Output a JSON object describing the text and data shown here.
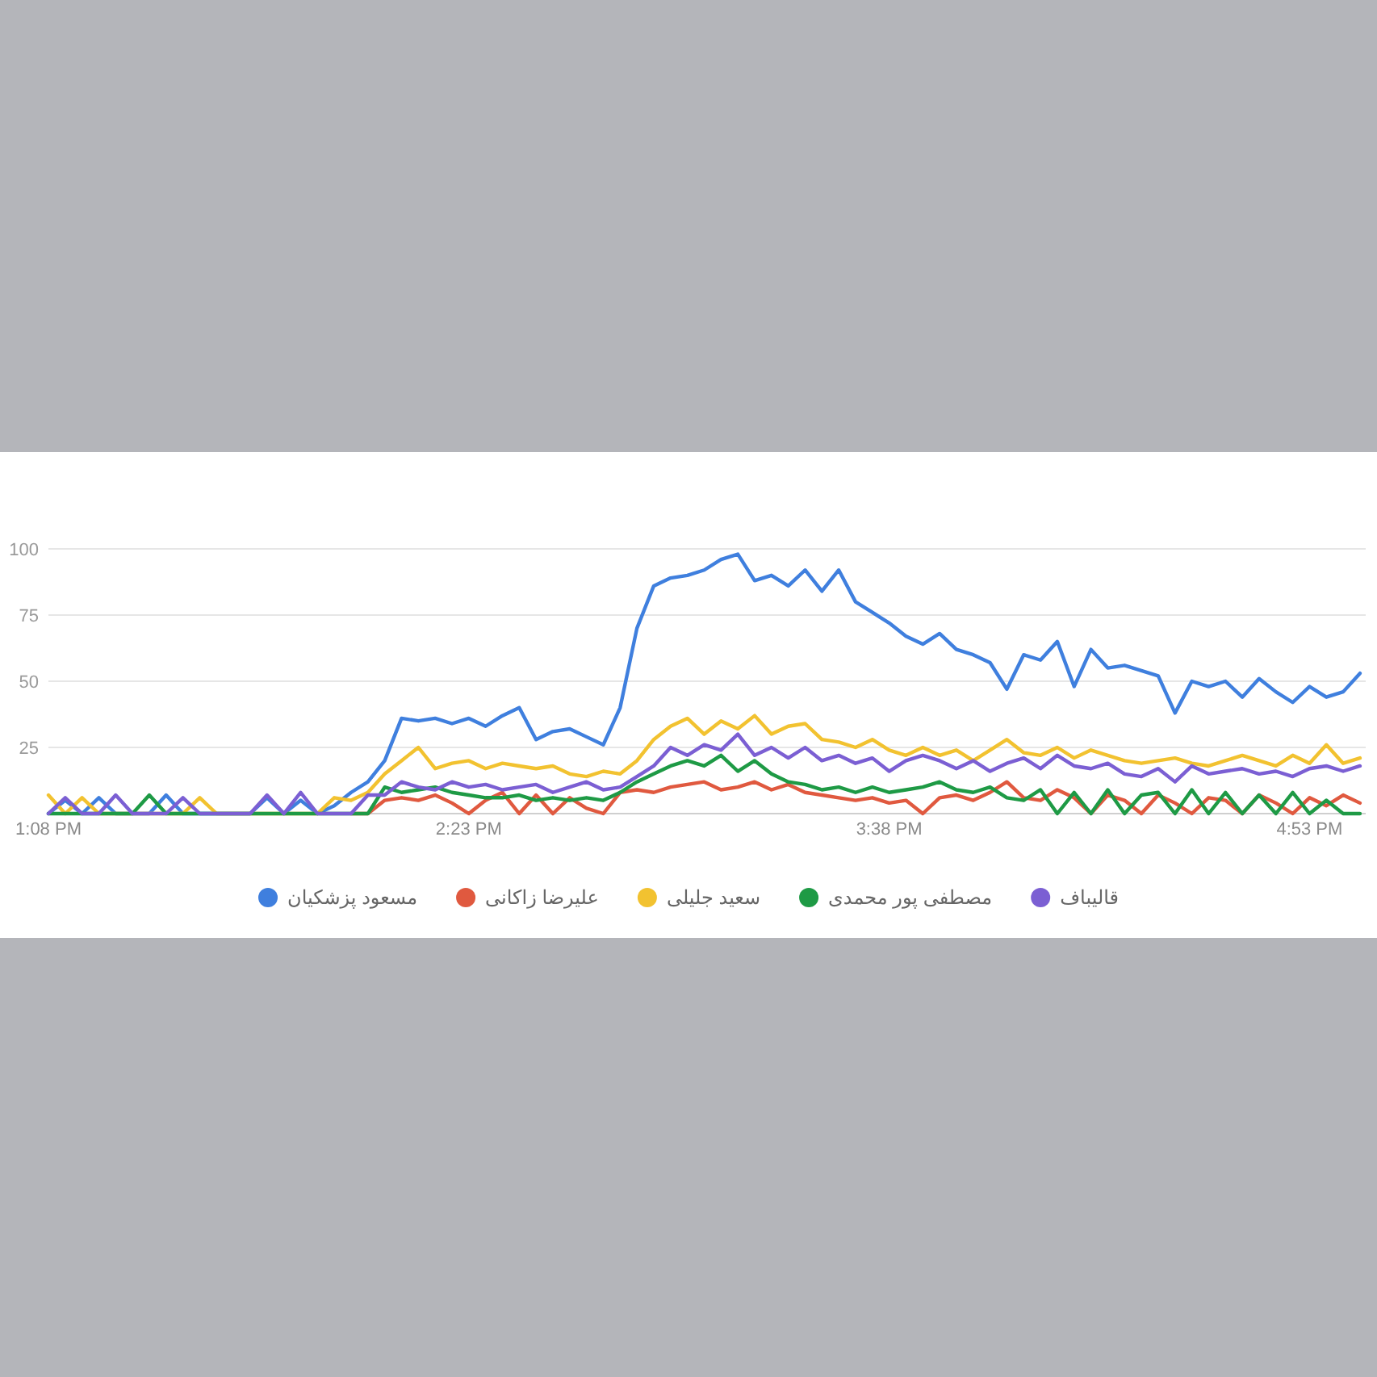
{
  "chart_data": {
    "type": "line",
    "x": [
      13.133,
      13.183,
      13.233,
      13.283,
      13.333,
      13.383,
      13.433,
      13.483,
      13.533,
      13.583,
      13.633,
      13.683,
      13.733,
      13.783,
      13.833,
      13.883,
      13.933,
      13.983,
      14.033,
      14.083,
      14.133,
      14.183,
      14.233,
      14.283,
      14.333,
      14.383,
      14.433,
      14.483,
      14.533,
      14.583,
      14.633,
      14.683,
      14.733,
      14.783,
      14.833,
      14.883,
      14.933,
      14.983,
      15.033,
      15.083,
      15.133,
      15.183,
      15.233,
      15.283,
      15.333,
      15.383,
      15.433,
      15.483,
      15.533,
      15.583,
      15.633,
      15.683,
      15.733,
      15.783,
      15.833,
      15.883,
      15.933,
      15.983,
      16.033,
      16.083,
      16.133,
      16.183,
      16.233,
      16.283,
      16.333,
      16.383,
      16.433,
      16.483,
      16.533,
      16.583,
      16.633,
      16.683,
      16.733,
      16.783,
      16.833,
      16.883,
      16.933,
      16.983,
      17.033
    ],
    "series": [
      {
        "name": "مسعود پزشکیان",
        "color": "#3f7fde",
        "values": [
          0,
          5,
          0,
          6,
          0,
          0,
          0,
          7,
          0,
          0,
          0,
          0,
          0,
          6,
          0,
          5,
          0,
          3,
          8,
          12,
          20,
          36,
          35,
          36,
          34,
          36,
          33,
          37,
          40,
          28,
          31,
          32,
          29,
          26,
          40,
          70,
          86,
          89,
          90,
          92,
          96,
          98,
          88,
          90,
          86,
          92,
          84,
          92,
          80,
          76,
          72,
          67,
          64,
          68,
          62,
          60,
          57,
          47,
          60,
          58,
          65,
          48,
          62,
          55,
          56,
          54,
          52,
          38,
          50,
          48,
          50,
          44,
          51,
          46,
          42,
          48,
          44,
          46,
          53
        ]
      },
      {
        "name": "علیرضا زاکانی",
        "color": "#e0593f",
        "values": [
          null,
          null,
          null,
          null,
          null,
          null,
          null,
          null,
          null,
          null,
          null,
          null,
          null,
          null,
          null,
          null,
          null,
          null,
          0,
          0,
          5,
          6,
          5,
          7,
          4,
          0,
          5,
          8,
          0,
          7,
          0,
          6,
          2,
          0,
          8,
          9,
          8,
          10,
          11,
          12,
          9,
          10,
          12,
          9,
          11,
          8,
          7,
          6,
          5,
          6,
          4,
          5,
          0,
          6,
          7,
          5,
          8,
          12,
          6,
          5,
          9,
          6,
          0,
          7,
          5,
          0,
          7,
          4,
          0,
          6,
          5,
          0,
          7,
          4,
          0,
          6,
          3,
          7,
          4
        ]
      },
      {
        "name": "سعید جلیلی",
        "color": "#f2c230",
        "values": [
          7,
          0,
          6,
          0,
          0,
          0,
          0,
          0,
          0,
          6,
          0,
          0,
          0,
          0,
          0,
          0,
          0,
          6,
          5,
          8,
          15,
          20,
          25,
          17,
          19,
          20,
          17,
          19,
          18,
          17,
          18,
          15,
          14,
          16,
          15,
          20,
          28,
          33,
          36,
          30,
          35,
          32,
          37,
          30,
          33,
          34,
          28,
          27,
          25,
          28,
          24,
          22,
          25,
          22,
          24,
          20,
          24,
          28,
          23,
          22,
          25,
          21,
          24,
          22,
          20,
          19,
          20,
          21,
          19,
          18,
          20,
          22,
          20,
          18,
          22,
          19,
          26,
          19,
          21
        ]
      },
      {
        "name": "مصطفی پور محمدی",
        "color": "#1e9a45",
        "values": [
          0,
          0,
          0,
          0,
          0,
          0,
          7,
          0,
          0,
          0,
          0,
          0,
          0,
          0,
          0,
          0,
          0,
          0,
          0,
          0,
          10,
          8,
          9,
          10,
          8,
          7,
          6,
          6,
          7,
          5,
          6,
          5,
          6,
          5,
          8,
          12,
          15,
          18,
          20,
          18,
          22,
          16,
          20,
          15,
          12,
          11,
          9,
          10,
          8,
          10,
          8,
          9,
          10,
          12,
          9,
          8,
          10,
          6,
          5,
          9,
          0,
          8,
          0,
          9,
          0,
          7,
          8,
          0,
          9,
          0,
          8,
          0,
          7,
          0,
          8,
          0,
          5,
          0,
          0
        ]
      },
      {
        "name": "قالیباف",
        "color": "#7b5fd3",
        "values": [
          0,
          6,
          0,
          0,
          7,
          0,
          0,
          0,
          6,
          0,
          0,
          0,
          0,
          7,
          0,
          8,
          0,
          0,
          0,
          7,
          7,
          12,
          10,
          9,
          12,
          10,
          11,
          9,
          10,
          11,
          8,
          10,
          12,
          9,
          10,
          14,
          18,
          25,
          22,
          26,
          24,
          30,
          22,
          25,
          21,
          25,
          20,
          22,
          19,
          21,
          16,
          20,
          22,
          20,
          17,
          20,
          16,
          19,
          21,
          17,
          22,
          18,
          17,
          19,
          15,
          14,
          17,
          12,
          18,
          15,
          16,
          17,
          15,
          16,
          14,
          17,
          18,
          16,
          18
        ]
      }
    ],
    "xlim": [
      13.133,
      17.05
    ],
    "xticks": [
      {
        "value": 13.133,
        "label": "1:08 PM"
      },
      {
        "value": 14.383,
        "label": "2:23 PM"
      },
      {
        "value": 15.633,
        "label": "3:38 PM"
      },
      {
        "value": 16.883,
        "label": "4:53 PM"
      }
    ],
    "ylim": [
      0,
      100
    ],
    "yticks": [
      {
        "value": 0,
        "label": null
      },
      25,
      50,
      75,
      100
    ],
    "grid": "y",
    "legend": "bottom"
  }
}
